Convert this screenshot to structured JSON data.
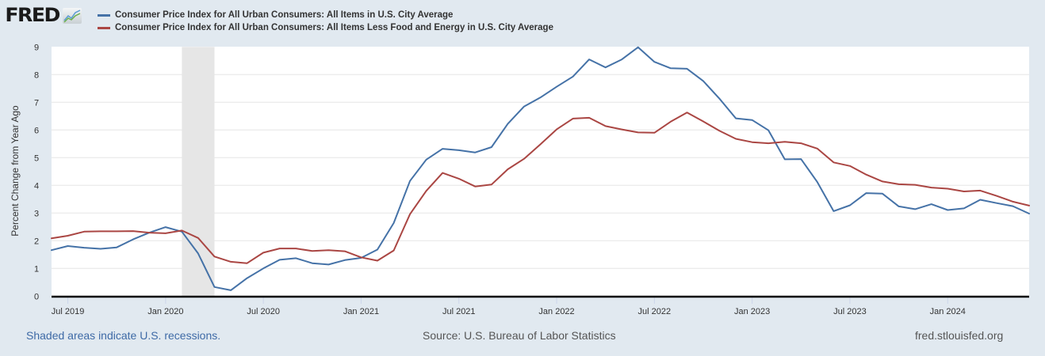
{
  "brand": {
    "logo_text": "FRED",
    "logo_icon": "fred-chart-icon"
  },
  "colors": {
    "background": "#e1e9f0",
    "series1": "#4572a7",
    "series2": "#aa4643",
    "recession": "#e6e6e6",
    "grid": "#e6e6e6"
  },
  "footer": {
    "recession_note": "Shaded areas indicate U.S. recessions.",
    "source": "Source: U.S. Bureau of Labor Statistics",
    "site": "fred.stlouisfed.org"
  },
  "chart_data": {
    "type": "line",
    "title": "",
    "xlabel": "",
    "ylabel": "Percent Change from Year Ago",
    "ylim": [
      0,
      9
    ],
    "yticks": [
      0,
      1,
      2,
      3,
      4,
      5,
      6,
      7,
      8,
      9
    ],
    "grid": true,
    "legend_position": "top-left",
    "x_start": "2019-06",
    "x_end": "2024-06",
    "xtick_labels": [
      {
        "label": "Jul 2019",
        "month_index": 1
      },
      {
        "label": "Jan 2020",
        "month_index": 7
      },
      {
        "label": "Jul 2020",
        "month_index": 13
      },
      {
        "label": "Jan 2021",
        "month_index": 19
      },
      {
        "label": "Jul 2021",
        "month_index": 25
      },
      {
        "label": "Jan 2022",
        "month_index": 31
      },
      {
        "label": "Jul 2022",
        "month_index": 37
      },
      {
        "label": "Jan 2023",
        "month_index": 43
      },
      {
        "label": "Jul 2023",
        "month_index": 49
      },
      {
        "label": "Jan 2024",
        "month_index": 55
      }
    ],
    "recessions": [
      {
        "start_month_index": 8,
        "end_month_index": 10,
        "label": "Feb 2020 - Apr 2020"
      }
    ],
    "series": [
      {
        "name": "Consumer Price Index for All Urban Consumers: All Items in U.S. City Average",
        "color": "#4572a7",
        "values": [
          1.66,
          1.81,
          1.75,
          1.71,
          1.76,
          2.05,
          2.29,
          2.49,
          2.33,
          1.54,
          0.33,
          0.21,
          0.65,
          1.0,
          1.31,
          1.37,
          1.19,
          1.14,
          1.3,
          1.38,
          1.68,
          2.64,
          4.16,
          4.93,
          5.32,
          5.27,
          5.19,
          5.38,
          6.22,
          6.85,
          7.17,
          7.56,
          7.93,
          8.55,
          8.26,
          8.55,
          8.99,
          8.46,
          8.23,
          8.21,
          7.77,
          7.13,
          6.42,
          6.36,
          5.99,
          4.94,
          4.95,
          4.12,
          3.07,
          3.28,
          3.72,
          3.7,
          3.24,
          3.14,
          3.32,
          3.11,
          3.17,
          3.48,
          3.36,
          3.25,
          2.98
        ]
      },
      {
        "name": "Consumer Price Index for All Urban Consumers: All Items Less Food and Energy in U.S. City Average",
        "color": "#aa4643",
        "values": [
          2.09,
          2.18,
          2.33,
          2.34,
          2.34,
          2.35,
          2.29,
          2.27,
          2.37,
          2.1,
          1.43,
          1.24,
          1.19,
          1.57,
          1.72,
          1.72,
          1.63,
          1.66,
          1.62,
          1.4,
          1.28,
          1.65,
          2.96,
          3.8,
          4.45,
          4.24,
          3.96,
          4.03,
          4.58,
          4.96,
          5.48,
          6.02,
          6.41,
          6.44,
          6.14,
          6.02,
          5.91,
          5.9,
          6.3,
          6.63,
          6.31,
          5.97,
          5.68,
          5.56,
          5.52,
          5.57,
          5.52,
          5.33,
          4.83,
          4.7,
          4.39,
          4.14,
          4.04,
          4.02,
          3.92,
          3.88,
          3.78,
          3.81,
          3.62,
          3.41,
          3.27
        ]
      }
    ]
  }
}
